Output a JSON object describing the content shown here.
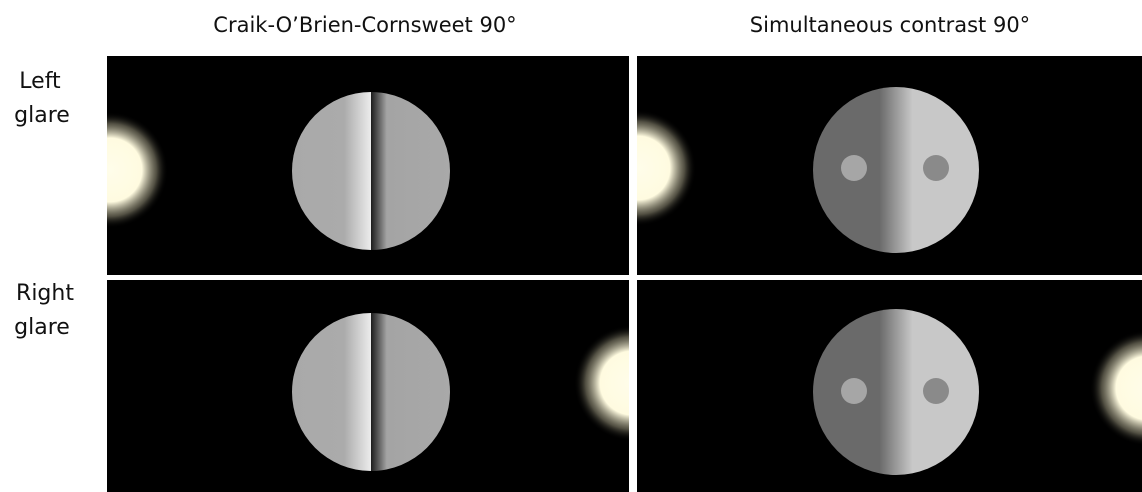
{
  "columns": [
    "Craik-O’Brien-Cornsweet 90°",
    "Simultaneous contrast 90°"
  ],
  "rows": [
    [
      "Left",
      "glare"
    ],
    [
      "Right",
      "glare"
    ]
  ]
}
